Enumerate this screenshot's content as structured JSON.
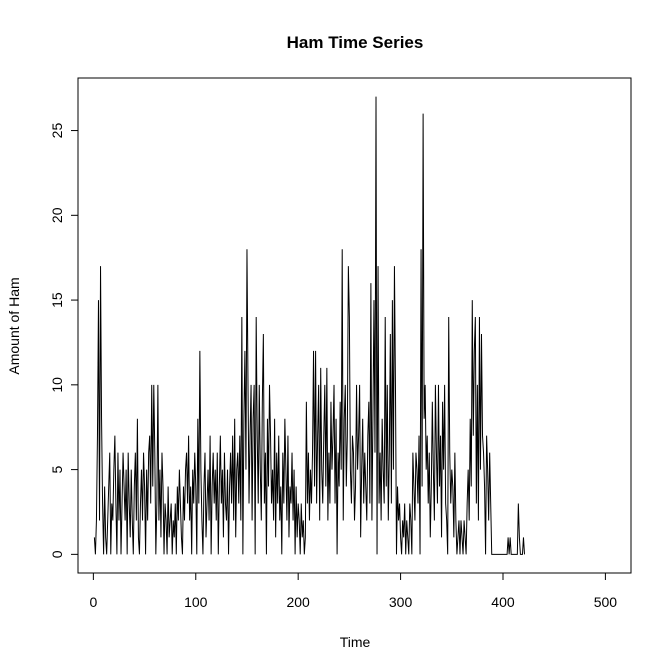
{
  "chart_data": {
    "type": "line",
    "title": "Ham Time Series",
    "xlabel": "Time",
    "ylabel": "Amount of Ham",
    "xlim": [
      -15,
      525
    ],
    "ylim": [
      -1.1,
      28.1
    ],
    "x_ticks": [
      0,
      100,
      200,
      300,
      400,
      500
    ],
    "y_ticks": [
      0,
      5,
      10,
      15,
      20,
      25
    ],
    "x_tick_labels": [
      "0",
      "100",
      "200",
      "300",
      "400",
      "500"
    ],
    "y_tick_labels": [
      "0",
      "5",
      "10",
      "15",
      "20",
      "25"
    ],
    "grid": false,
    "legend": "none",
    "x_start": 1,
    "line_color": "#000000",
    "series": [
      {
        "values": [
          1,
          0,
          2,
          7,
          15,
          2,
          17,
          8,
          3,
          0,
          4,
          1,
          0,
          2,
          4,
          6,
          0,
          3,
          2,
          5,
          7,
          3,
          0,
          6,
          2,
          5,
          0,
          3,
          6,
          4,
          2,
          5,
          0,
          6,
          3,
          1,
          5,
          2,
          0,
          4,
          6,
          2,
          8,
          1,
          0,
          3,
          5,
          2,
          6,
          4,
          0,
          5,
          2,
          6,
          7,
          3,
          10,
          4,
          10,
          6,
          0,
          3,
          10,
          2,
          5,
          1,
          6,
          4,
          0,
          3,
          2,
          0,
          4,
          1,
          2,
          3,
          0,
          2,
          1,
          3,
          0,
          4,
          2,
          5,
          3,
          1,
          0,
          4,
          2,
          5,
          6,
          3,
          7,
          2,
          4,
          0,
          5,
          3,
          6,
          4,
          0,
          8,
          3,
          12,
          5,
          2,
          0,
          4,
          6,
          1,
          3,
          5,
          2,
          7,
          0,
          4,
          6,
          3,
          5,
          2,
          6,
          0,
          4,
          7,
          3,
          5,
          1,
          6,
          3,
          2,
          5,
          0,
          4,
          6,
          3,
          7,
          2,
          8,
          1,
          5,
          6,
          3,
          7,
          2,
          14,
          0,
          8,
          12,
          5,
          18,
          10,
          3,
          7,
          10,
          2,
          8,
          10,
          0,
          14,
          7,
          3,
          10,
          5,
          2,
          9,
          13,
          3,
          6,
          0,
          8,
          4,
          10,
          7,
          3,
          5,
          2,
          8,
          1,
          6,
          3,
          7,
          2,
          4,
          0,
          6,
          3,
          8,
          5,
          2,
          7,
          1,
          4,
          3,
          6,
          2,
          5,
          0,
          4,
          1,
          3,
          2,
          0,
          3,
          1,
          2,
          0,
          1,
          9,
          3,
          6,
          2,
          5,
          3,
          6,
          12,
          4,
          12,
          3,
          7,
          10,
          2,
          11,
          5,
          3,
          7,
          10,
          4,
          11,
          2,
          6,
          3,
          9,
          5,
          7,
          10,
          3,
          8,
          0,
          6,
          4,
          9,
          5,
          18,
          2,
          8,
          10,
          4,
          7,
          17,
          14,
          5,
          3,
          7,
          6,
          2,
          4,
          10,
          5,
          7,
          10,
          1,
          5,
          8,
          3,
          6,
          4,
          2,
          7,
          9,
          3,
          16,
          2,
          8,
          15,
          6,
          27,
          0,
          17,
          3,
          6,
          2,
          8,
          5,
          3,
          14,
          4,
          10,
          2,
          6,
          13,
          3,
          15,
          5,
          17,
          10,
          0,
          4,
          2,
          3,
          1,
          0,
          2,
          1,
          3,
          0,
          2,
          1,
          0,
          3,
          2,
          0,
          6,
          4,
          2,
          6,
          5,
          3,
          7,
          0,
          18,
          4,
          26,
          8,
          10,
          5,
          7,
          3,
          6,
          1,
          4,
          9,
          5,
          2,
          10,
          6,
          3,
          10,
          4,
          7,
          1,
          9,
          5,
          10,
          3,
          2,
          0,
          14,
          6,
          3,
          5,
          4,
          1,
          6,
          2,
          0,
          1,
          2,
          0,
          2,
          1,
          0,
          2,
          1,
          0,
          3,
          5,
          2,
          8,
          4,
          15,
          7,
          12,
          14,
          3,
          10,
          2,
          14,
          5,
          13,
          7,
          6,
          4,
          0,
          7,
          5,
          2,
          6,
          3,
          0,
          0,
          0,
          0,
          0,
          0,
          0,
          0,
          0,
          0,
          0,
          0,
          0,
          0,
          0,
          0,
          1,
          0,
          1,
          0,
          0,
          0,
          0,
          0,
          0,
          0,
          3,
          1,
          0,
          0,
          0,
          1,
          0
        ]
      }
    ]
  }
}
